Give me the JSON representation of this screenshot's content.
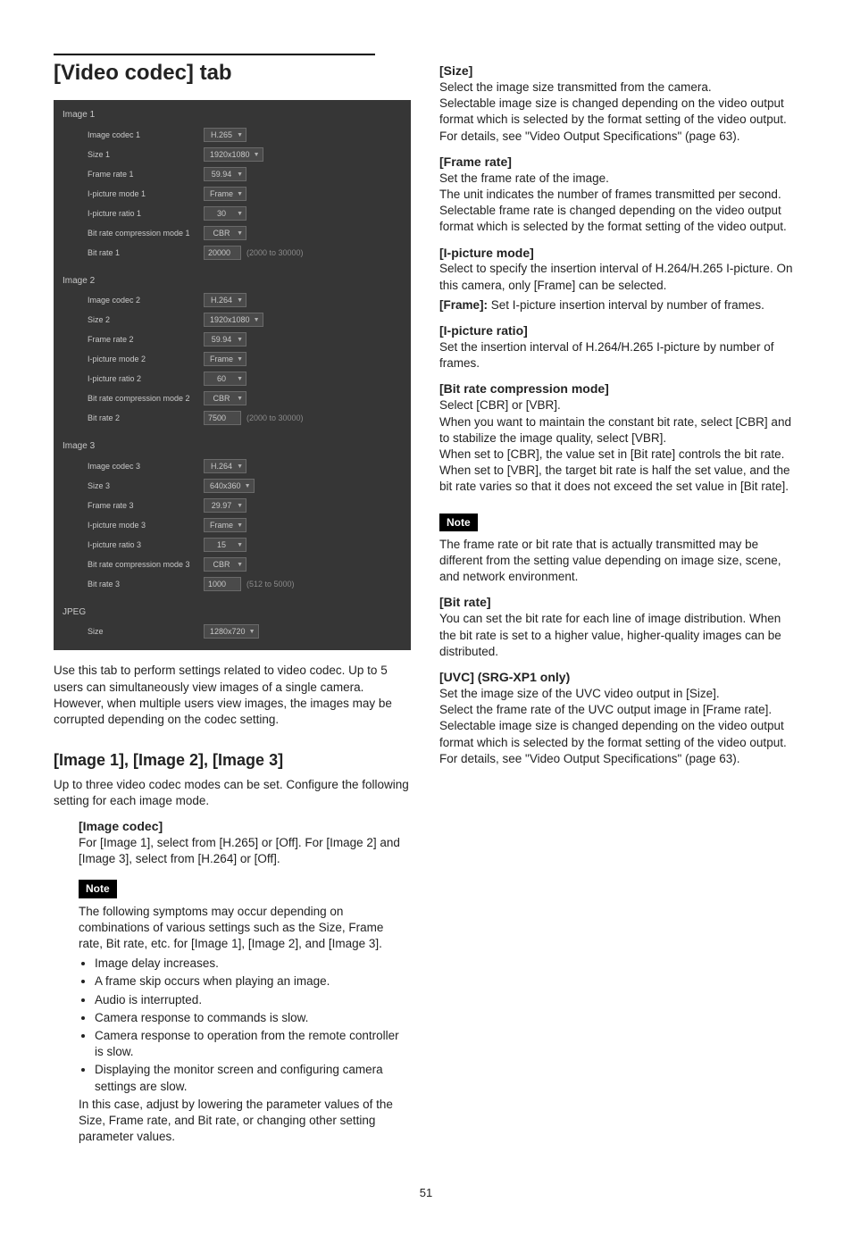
{
  "title": "[Video codec] tab",
  "pageNumber": "51",
  "ui": {
    "sections": [
      {
        "title": "Image 1",
        "rows": [
          {
            "label": "Image codec 1",
            "kind": "select",
            "value": "H.265"
          },
          {
            "label": "Size 1",
            "kind": "select",
            "value": "1920x1080"
          },
          {
            "label": "Frame rate 1",
            "kind": "select",
            "value": "59.94"
          },
          {
            "label": "I-picture mode 1",
            "kind": "select",
            "value": "Frame"
          },
          {
            "label": "I-picture ratio 1",
            "kind": "select",
            "value": "30"
          },
          {
            "label": "Bit rate compression mode 1",
            "kind": "select",
            "value": "CBR"
          },
          {
            "label": "Bit rate 1",
            "kind": "input",
            "value": "20000",
            "range": "(2000 to 30000)"
          }
        ]
      },
      {
        "title": "Image 2",
        "rows": [
          {
            "label": "Image codec 2",
            "kind": "select",
            "value": "H.264"
          },
          {
            "label": "Size 2",
            "kind": "select",
            "value": "1920x1080"
          },
          {
            "label": "Frame rate 2",
            "kind": "select",
            "value": "59.94"
          },
          {
            "label": "I-picture mode 2",
            "kind": "select",
            "value": "Frame"
          },
          {
            "label": "I-picture ratio 2",
            "kind": "select",
            "value": "60"
          },
          {
            "label": "Bit rate compression mode 2",
            "kind": "select",
            "value": "CBR"
          },
          {
            "label": "Bit rate 2",
            "kind": "input",
            "value": "7500",
            "range": "(2000 to 30000)"
          }
        ]
      },
      {
        "title": "Image 3",
        "rows": [
          {
            "label": "Image codec 3",
            "kind": "select",
            "value": "H.264"
          },
          {
            "label": "Size 3",
            "kind": "select",
            "value": "640x360"
          },
          {
            "label": "Frame rate 3",
            "kind": "select",
            "value": "29.97"
          },
          {
            "label": "I-picture mode 3",
            "kind": "select",
            "value": "Frame"
          },
          {
            "label": "I-picture ratio 3",
            "kind": "select",
            "value": "15"
          },
          {
            "label": "Bit rate compression mode 3",
            "kind": "select",
            "value": "CBR"
          },
          {
            "label": "Bit rate 3",
            "kind": "input",
            "value": "1000",
            "range": "(512 to 5000)"
          }
        ]
      },
      {
        "title": "JPEG",
        "rows": [
          {
            "label": "Size",
            "kind": "select",
            "value": "1280x720"
          }
        ]
      }
    ]
  },
  "left": {
    "intro": "Use this tab to perform settings related to video codec. Up to 5 users can simultaneously view images of a single camera. However, when multiple users view images, the images may be corrupted depending on the codec setting.",
    "h2": "[Image 1], [Image 2], [Image 3]",
    "h2body": "Up to three video codec modes can be set. Configure the following setting for each image mode.",
    "imgcodec_head": "[Image codec]",
    "imgcodec_body": "For [Image 1], select from [H.265] or [Off]. For [Image 2] and [Image 3], select from [H.264] or [Off].",
    "note": "Note",
    "note_body": "The following symptoms may occur depending on combinations of various settings such as the Size, Frame rate, Bit rate, etc. for [Image 1], [Image 2], and [Image 3].",
    "bullets": [
      "Image delay increases.",
      "A frame skip occurs when playing an image.",
      "Audio is interrupted.",
      "Camera response to commands is slow.",
      "Camera response to operation from the remote controller is slow.",
      "Displaying the monitor screen and configuring camera settings are slow."
    ],
    "note_tail": "In this case, adjust by lowering the parameter values of the Size, Frame rate, and Bit rate, or changing other setting parameter values."
  },
  "right": {
    "size_head": "[Size]",
    "size_body": "Select the image size transmitted from the camera.\nSelectable image size is changed depending on the video output format which is selected by the format setting of the video output.\nFor details, see \"Video Output Specifications\" (page 63).",
    "fr_head": "[Frame rate]",
    "fr_body": "Set the frame rate of the image.\nThe unit indicates the number of frames transmitted per second.\nSelectable frame rate is changed depending on the video output format which is selected by the format setting of the video output.",
    "ipm_head": "[I-picture mode]",
    "ipm_body": "Select to specify the insertion interval of H.264/H.265 I-picture. On this camera, only [Frame] can be selected.",
    "frame_label": "[Frame]:",
    "frame_body": "Set I-picture insertion interval by number of frames.",
    "ipr_head": "[I-picture ratio]",
    "ipr_body": "Set the insertion interval of H.264/H.265 I-picture by number of frames.",
    "brcm_head": "[Bit rate compression mode]",
    "brcm_body": "Select [CBR] or [VBR].\nWhen you want to maintain the constant bit rate, select [CBR] and to stabilize the image quality, select [VBR].\nWhen set to [CBR], the value set in [Bit rate] controls the bit rate. When set to [VBR], the target bit rate is half the set value, and the bit rate varies so that it does not exceed the set value in [Bit rate].",
    "note": "Note",
    "note_body": "The frame rate or bit rate that is actually transmitted may be different from the setting value depending on image size, scene, and network environment.",
    "br_head": "[Bit rate]",
    "br_body": "You can set the bit rate for each line of image distribution. When the bit rate is set to a higher value, higher-quality images can be distributed.",
    "uvc_head": "[UVC] (SRG-XP1 only)",
    "uvc_body": "Set the image size of the UVC video output in [Size].\nSelect the frame rate of the UVC output image in [Frame rate].\nSelectable image size is changed depending on the video output format which is selected by the format setting of the video output.\nFor details, see \"Video Output Specifications\" (page 63)."
  }
}
